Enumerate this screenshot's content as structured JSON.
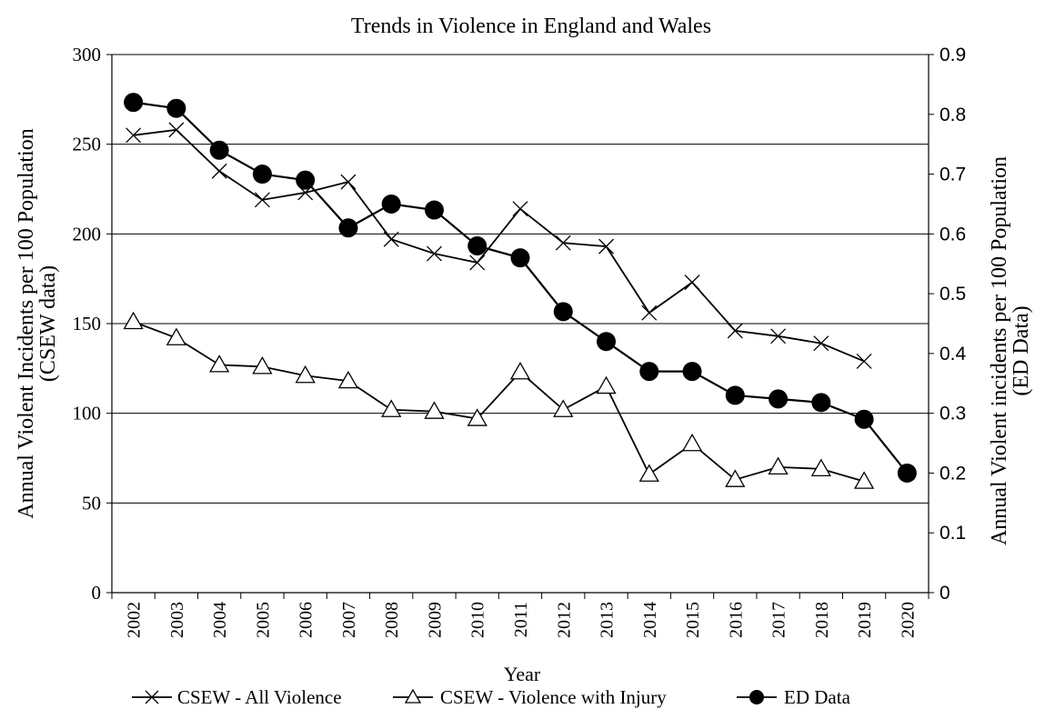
{
  "chart_data": {
    "type": "line",
    "title": "Trends in Violence in England and Wales",
    "xlabel": "Year",
    "ylabel_left": "Annual Violent Incidents per 100 Population\n(CSEW data)",
    "ylabel_right": "Annual Violent incidents per 100 Population\n(ED Data)",
    "categories": [
      "2002",
      "2003",
      "2004",
      "2005",
      "2006",
      "2007",
      "2008",
      "2009",
      "2010",
      "2011",
      "2012",
      "2013",
      "2014",
      "2015",
      "2016",
      "2017",
      "2018",
      "2019",
      "2020"
    ],
    "y_left": {
      "min": 0,
      "max": 300,
      "ticks": [
        "0",
        "50",
        "100",
        "150",
        "200",
        "250",
        "300"
      ]
    },
    "y_right": {
      "min": 0,
      "max": 0.9,
      "ticks": [
        "0",
        "0.1",
        "0.2",
        "0.3",
        "0.4",
        "0.5",
        "0.6",
        "0.7",
        "0.8",
        "0.9"
      ]
    },
    "grid": "horizontal",
    "legend_position": "bottom",
    "series": [
      {
        "name": "CSEW - All Violence",
        "axis": "left",
        "marker": "x",
        "values": [
          255,
          258,
          235,
          219,
          223,
          229,
          197,
          189,
          184,
          214,
          195,
          193,
          156,
          173,
          146,
          143,
          139,
          129,
          null
        ]
      },
      {
        "name": "CSEW - Violence with Injury",
        "axis": "left",
        "marker": "triangle",
        "values": [
          151,
          142,
          127,
          126,
          121,
          118,
          102,
          101,
          97,
          123,
          102,
          115,
          66,
          83,
          63,
          70,
          69,
          62,
          null
        ]
      },
      {
        "name": "ED Data",
        "axis": "right",
        "marker": "circle",
        "values": [
          0.82,
          0.81,
          0.74,
          0.7,
          0.69,
          0.61,
          0.65,
          0.64,
          0.58,
          0.56,
          0.47,
          0.42,
          0.37,
          0.37,
          0.33,
          0.324,
          0.318,
          0.29,
          0.2
        ]
      }
    ]
  }
}
